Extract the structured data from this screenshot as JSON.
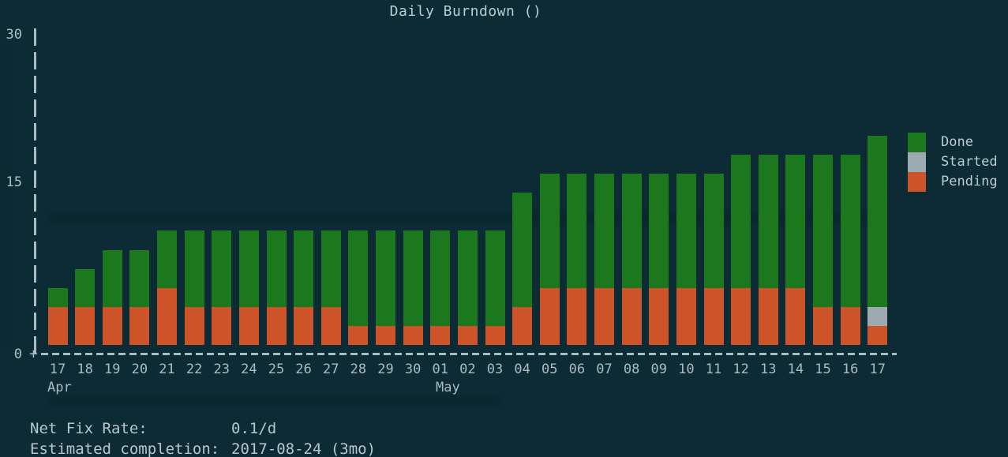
{
  "chart_data": {
    "type": "bar",
    "stacked": true,
    "title": "Daily Burndown ()",
    "categories": [
      "17",
      "18",
      "19",
      "20",
      "21",
      "22",
      "23",
      "24",
      "25",
      "26",
      "27",
      "28",
      "29",
      "30",
      "01",
      "02",
      "03",
      "04",
      "05",
      "06",
      "07",
      "08",
      "09",
      "10",
      "11",
      "12",
      "13",
      "14",
      "15",
      "16",
      "17"
    ],
    "x_axis_months": [
      {
        "label": "Apr",
        "at_category_index": 0
      },
      {
        "label": "May",
        "at_category_index": 14
      }
    ],
    "series": [
      {
        "name": "Done",
        "color": "#1c781c",
        "values": [
          2,
          4,
          6,
          6,
          6,
          8,
          8,
          8,
          8,
          8,
          8,
          10,
          10,
          10,
          10,
          10,
          10,
          12,
          12,
          12,
          12,
          12,
          12,
          12,
          12,
          14,
          14,
          14,
          16,
          16,
          18
        ]
      },
      {
        "name": "Started",
        "color": "#9dabb1",
        "values": [
          0,
          0,
          0,
          0,
          0,
          0,
          0,
          0,
          0,
          0,
          0,
          0,
          0,
          0,
          0,
          0,
          0,
          0,
          0,
          0,
          0,
          0,
          0,
          0,
          0,
          0,
          0,
          0,
          0,
          0,
          2
        ]
      },
      {
        "name": "Pending",
        "color": "#cc5428",
        "values": [
          4,
          4,
          4,
          4,
          6,
          4,
          4,
          4,
          4,
          4,
          4,
          2,
          2,
          2,
          2,
          2,
          2,
          4,
          6,
          6,
          6,
          6,
          6,
          6,
          6,
          6,
          6,
          6,
          4,
          4,
          2
        ]
      }
    ],
    "totals": [
      6,
      8,
      10,
      10,
      12,
      12,
      12,
      12,
      12,
      12,
      12,
      12,
      12,
      12,
      12,
      12,
      12,
      16,
      18,
      18,
      18,
      18,
      18,
      18,
      18,
      20,
      20,
      20,
      20,
      20,
      22
    ],
    "ylim": [
      0,
      30
    ],
    "yticks": [
      "30",
      "15",
      "0"
    ],
    "grid": false,
    "legend_position": "right",
    "legend": [
      "Done",
      "Started",
      "Pending"
    ]
  },
  "footer": {
    "net_fix_rate_label": "Net Fix Rate:",
    "net_fix_rate_value": "0.1/d",
    "estimated_completion_label": "Estimated completion:",
    "estimated_completion_value": "2017-08-24 (3mo)"
  },
  "colors": {
    "background": "#0c2b34",
    "text": "#b6c8cc",
    "axis": "#a8bcc2",
    "done": "#1c781c",
    "started": "#9dabb1",
    "pending": "#cc5428"
  }
}
